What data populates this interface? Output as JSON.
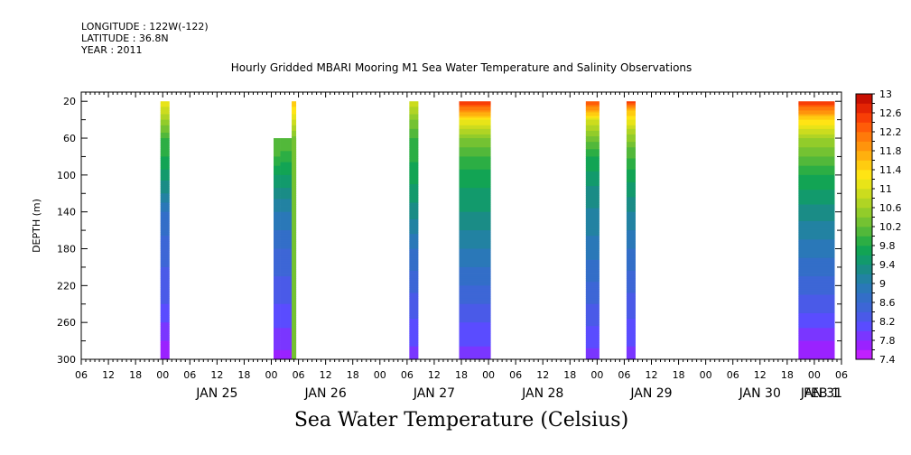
{
  "header": {
    "longitude": "LONGITUDE : 122W(-122)",
    "latitude": "LATITUDE : 36.8N",
    "year": "YEAR : 2011"
  },
  "chart_data": {
    "type": "heatmap",
    "title": "Hourly Gridded MBARI Mooring M1 Sea Water Temperature and Salinity Observations",
    "xlabel": "Sea Water Temperature (Celsius)",
    "ylabel": "DEPTH (m)",
    "x_unit": "hours since JAN 25 00:00",
    "xlim": [
      -18,
      150
    ],
    "ylim": [
      300,
      10
    ],
    "y_ticks": [
      20,
      60,
      100,
      140,
      180,
      220,
      260,
      300
    ],
    "x_hour_ticks": [
      {
        "h": -18,
        "label": "06"
      },
      {
        "h": -12,
        "label": "12"
      },
      {
        "h": -6,
        "label": "18"
      },
      {
        "h": 0,
        "label": "00"
      },
      {
        "h": 6,
        "label": "06"
      },
      {
        "h": 12,
        "label": "12"
      },
      {
        "h": 18,
        "label": "18"
      },
      {
        "h": 24,
        "label": "00"
      },
      {
        "h": 30,
        "label": "06"
      },
      {
        "h": 36,
        "label": "12"
      },
      {
        "h": 42,
        "label": "18"
      },
      {
        "h": 48,
        "label": "00"
      },
      {
        "h": 54,
        "label": "06"
      },
      {
        "h": 60,
        "label": "12"
      },
      {
        "h": 66,
        "label": "18"
      },
      {
        "h": 72,
        "label": "00"
      },
      {
        "h": 78,
        "label": "06"
      },
      {
        "h": 84,
        "label": "12"
      },
      {
        "h": 90,
        "label": "18"
      },
      {
        "h": 96,
        "label": "00"
      },
      {
        "h": 102,
        "label": "06"
      },
      {
        "h": 108,
        "label": "12"
      },
      {
        "h": 114,
        "label": "18"
      },
      {
        "h": 120,
        "label": "00"
      },
      {
        "h": 126,
        "label": "06"
      },
      {
        "h": 132,
        "label": "12"
      },
      {
        "h": 138,
        "label": "18"
      },
      {
        "h": 144,
        "label": "00"
      },
      {
        "h": 150,
        "label": "06"
      }
    ],
    "x_day_labels": [
      {
        "h": 0,
        "label": "JAN 25"
      },
      {
        "h": 24,
        "label": "JAN 26"
      },
      {
        "h": 48,
        "label": "JAN 27"
      },
      {
        "h": 72,
        "label": "JAN 28"
      },
      {
        "h": 96,
        "label": "JAN 29"
      },
      {
        "h": 120,
        "label": "JAN 30"
      },
      {
        "h": 144,
        "label": "JAN 31"
      },
      {
        "h": 168,
        "label": "FEB  1"
      }
    ],
    "colorbar": {
      "levels": [
        7.4,
        7.6,
        7.8,
        8.0,
        8.2,
        8.4,
        8.6,
        8.8,
        9.0,
        9.2,
        9.4,
        9.6,
        9.8,
        10.0,
        10.2,
        10.4,
        10.6,
        10.8,
        11.0,
        11.2,
        11.4,
        11.6,
        11.8,
        12.0,
        12.2,
        12.4,
        12.6,
        12.8,
        13.0
      ],
      "labels": [
        "7.4",
        "7.8",
        "8.2",
        "8.6",
        "9",
        "9.4",
        "9.8",
        "10.2",
        "10.6",
        "11",
        "11.4",
        "11.8",
        "12.2",
        "12.6",
        "13"
      ],
      "colors": [
        "#c020ff",
        "#9a22ff",
        "#7a36ff",
        "#5a4cff",
        "#4a5ae8",
        "#3d66d6",
        "#336ec8",
        "#2a78b8",
        "#2282a2",
        "#1a8c86",
        "#129a6c",
        "#12a454",
        "#2cae44",
        "#52b83a",
        "#74c232",
        "#92cc2a",
        "#b0d424",
        "#ccdc1e",
        "#e8e418",
        "#ffe414",
        "#ffcc10",
        "#ffb00e",
        "#ff940c",
        "#ff7a0a",
        "#ff5c08",
        "#f83e06",
        "#e42404",
        "#c81002"
      ]
    },
    "columns": [
      {
        "start": -0.5,
        "end": 1.5,
        "top": 20,
        "profile": [
          [
            20,
            11.2
          ],
          [
            40,
            10.6
          ],
          [
            60,
            10.0
          ],
          [
            80,
            9.8
          ],
          [
            100,
            9.5
          ],
          [
            120,
            9.2
          ],
          [
            140,
            8.8
          ],
          [
            180,
            8.5
          ],
          [
            240,
            8.2
          ],
          [
            280,
            7.8
          ],
          [
            300,
            7.6
          ]
        ]
      },
      {
        "start": 24.5,
        "end": 26,
        "top": 60,
        "profile": [
          [
            60,
            10.2
          ],
          [
            80,
            10.0
          ],
          [
            100,
            9.6
          ],
          [
            120,
            9.3
          ],
          [
            140,
            9.0
          ],
          [
            180,
            8.6
          ],
          [
            240,
            8.2
          ],
          [
            280,
            7.9
          ],
          [
            300,
            7.7
          ]
        ]
      },
      {
        "start": 26,
        "end": 29.5,
        "top": 60,
        "profile": [
          [
            60,
            10.2
          ],
          [
            80,
            9.9
          ],
          [
            100,
            9.6
          ],
          [
            120,
            9.3
          ],
          [
            140,
            9.0
          ],
          [
            180,
            8.6
          ],
          [
            240,
            8.2
          ],
          [
            280,
            7.9
          ],
          [
            300,
            7.7
          ]
        ]
      },
      {
        "start": 28.5,
        "end": 29.5,
        "top": 20,
        "profile": [
          [
            20,
            11.6
          ],
          [
            40,
            11.0
          ],
          [
            60,
            10.3
          ]
        ]
      },
      {
        "start": 54.5,
        "end": 56.5,
        "top": 20,
        "profile": [
          [
            20,
            11.0
          ],
          [
            40,
            10.4
          ],
          [
            60,
            10.0
          ],
          [
            100,
            9.7
          ],
          [
            140,
            9.3
          ],
          [
            180,
            8.8
          ],
          [
            240,
            8.3
          ],
          [
            300,
            7.9
          ]
        ]
      },
      {
        "start": 65.5,
        "end": 72.5,
        "top": 20,
        "profile": [
          [
            20,
            12.6
          ],
          [
            30,
            12.0
          ],
          [
            40,
            11.2
          ],
          [
            60,
            10.4
          ],
          [
            80,
            10.0
          ],
          [
            100,
            9.7
          ],
          [
            140,
            9.4
          ],
          [
            180,
            9.0
          ],
          [
            220,
            8.6
          ],
          [
            260,
            8.2
          ],
          [
            300,
            7.9
          ]
        ]
      },
      {
        "start": 93.5,
        "end": 96.5,
        "top": 20,
        "profile": [
          [
            20,
            12.4
          ],
          [
            30,
            11.8
          ],
          [
            40,
            11.0
          ],
          [
            60,
            10.3
          ],
          [
            80,
            9.8
          ],
          [
            120,
            9.3
          ],
          [
            180,
            8.9
          ],
          [
            240,
            8.4
          ],
          [
            300,
            7.9
          ]
        ]
      },
      {
        "start": 102.5,
        "end": 104.5,
        "top": 20,
        "profile": [
          [
            20,
            12.6
          ],
          [
            30,
            11.6
          ],
          [
            50,
            10.8
          ],
          [
            70,
            10.2
          ],
          [
            100,
            9.7
          ],
          [
            140,
            9.2
          ],
          [
            180,
            8.8
          ],
          [
            240,
            8.3
          ],
          [
            300,
            7.9
          ]
        ]
      },
      {
        "start": 140.5,
        "end": 148.5,
        "top": 20,
        "profile": [
          [
            20,
            12.6
          ],
          [
            30,
            12.0
          ],
          [
            40,
            11.4
          ],
          [
            60,
            10.6
          ],
          [
            80,
            10.2
          ],
          [
            100,
            9.8
          ],
          [
            140,
            9.3
          ],
          [
            180,
            8.9
          ],
          [
            220,
            8.5
          ],
          [
            260,
            8.1
          ],
          [
            280,
            7.8
          ],
          [
            300,
            7.6
          ]
        ]
      }
    ]
  }
}
